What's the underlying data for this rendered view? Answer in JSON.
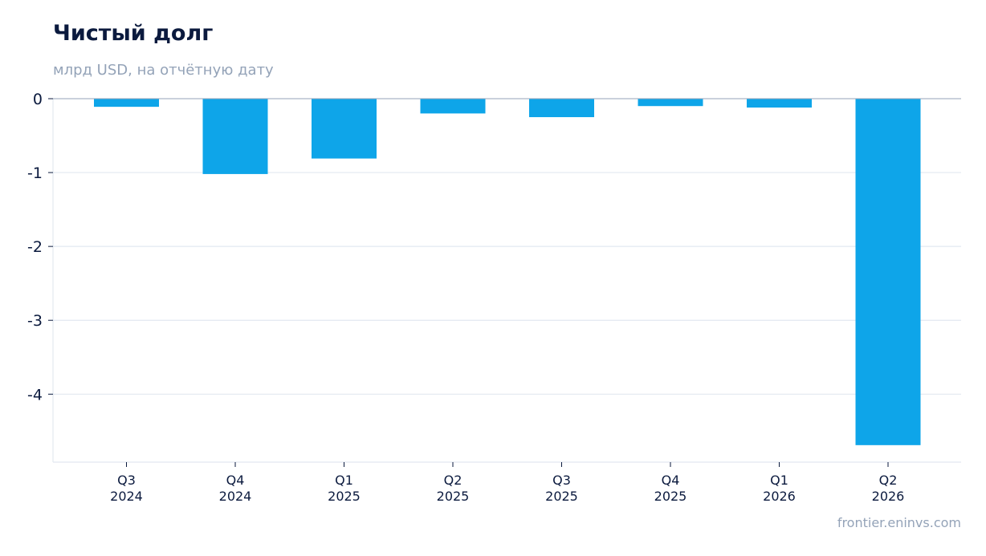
{
  "title": "Чистый долг",
  "subtitle": "млрд USD, на отчётную дату",
  "source": "frontier.eninvs.com",
  "colors": {
    "bar": "#0ea5e9",
    "grid": "#e2e8f0",
    "axis": "#e2e8f0",
    "zero_line": "#94a3b8",
    "text": "#0b1a3e",
    "muted": "#94a3b8"
  },
  "chart_data": {
    "type": "bar",
    "title": "Чистый долг",
    "subtitle": "млрд USD, на отчётную дату",
    "xlabel": "",
    "ylabel": "",
    "categories": [
      [
        "Q3",
        "2024"
      ],
      [
        "Q4",
        "2024"
      ],
      [
        "Q1",
        "2025"
      ],
      [
        "Q2",
        "2025"
      ],
      [
        "Q3",
        "2025"
      ],
      [
        "Q4",
        "2025"
      ],
      [
        "Q1",
        "2026"
      ],
      [
        "Q2",
        "2026"
      ]
    ],
    "values": [
      -0.11,
      -1.02,
      -0.81,
      -0.2,
      -0.25,
      -0.1,
      -0.12,
      -4.69
    ],
    "yticks": [
      "0",
      "-1",
      "-2",
      "-3",
      "-4"
    ],
    "ylim": [
      -4.92,
      0
    ],
    "grid": "horizontal",
    "legend": "none"
  }
}
